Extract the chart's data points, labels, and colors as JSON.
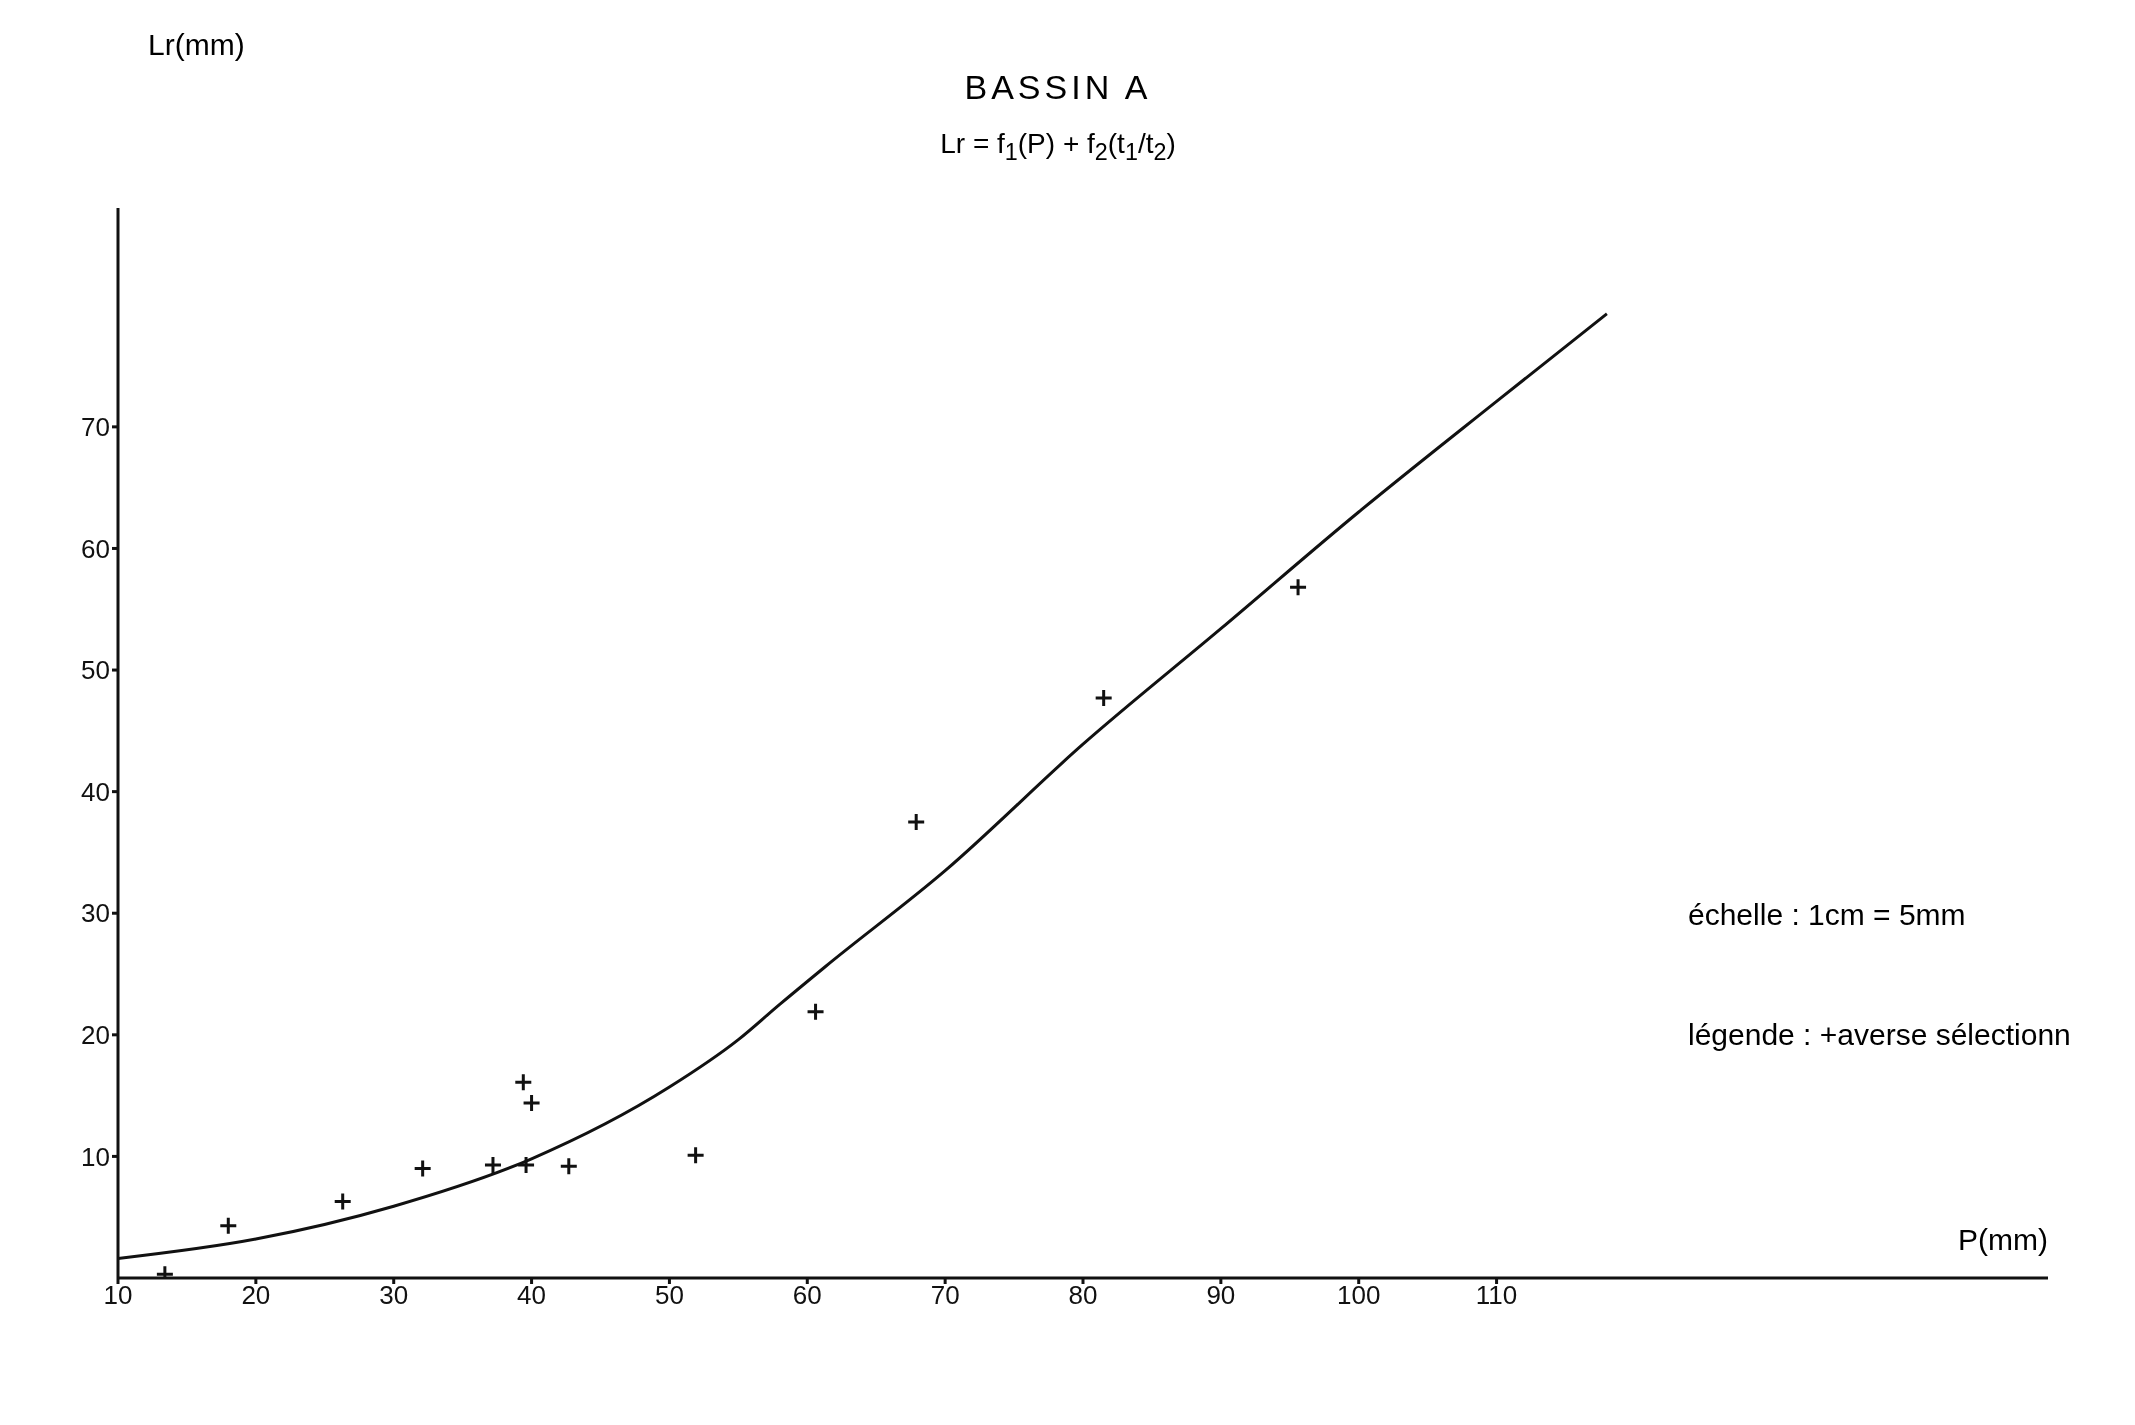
{
  "chart_data": {
    "type": "scatter",
    "title": "BASSIN A",
    "subtitle": "Lr = f$_{1}$(P) + f$_{2}$(t$_{1}$/t$_{2}$)",
    "xlabel": "P(mm)",
    "ylabel": "Lr(mm)",
    "annotations": [
      "échelle : 1cm = 5mm",
      "légende : +averse sélectionn"
    ],
    "xlim": [
      10,
      150
    ],
    "ylim": [
      0,
      88
    ],
    "xticks": [
      10,
      20,
      30,
      40,
      50,
      60,
      70,
      80,
      90,
      100,
      110
    ],
    "yticks": [
      10,
      20,
      30,
      40,
      50,
      60,
      70
    ],
    "grid": false,
    "legend": false,
    "marker": "cross",
    "series": [
      {
        "color": "#111111",
        "x": [
          13.4,
          18,
          26.3,
          32.1,
          37.2,
          39.6,
          39.4,
          40,
          42.7,
          51.9,
          60.6,
          67.9,
          81.5,
          95.6
        ],
        "values": [
          0.3,
          4.3,
          6.3,
          9,
          9.3,
          9.3,
          16.1,
          14.4,
          9.2,
          10.1,
          21.9,
          37.5,
          47.7,
          56.8
        ]
      },
      {
        "type": "line",
        "color": "#111111",
        "marker": "none",
        "line_style": "solid",
        "x": [
          10,
          20,
          30,
          40,
          50,
          55,
          58,
          61.3,
          70,
          80,
          90,
          100,
          110,
          118
        ],
        "values": [
          1.6,
          3.2,
          5.9,
          9.8,
          15.7,
          19.6,
          22.5,
          25.6,
          33.5,
          43.9,
          53.4,
          63,
          72.1,
          79.3
        ]
      }
    ]
  }
}
